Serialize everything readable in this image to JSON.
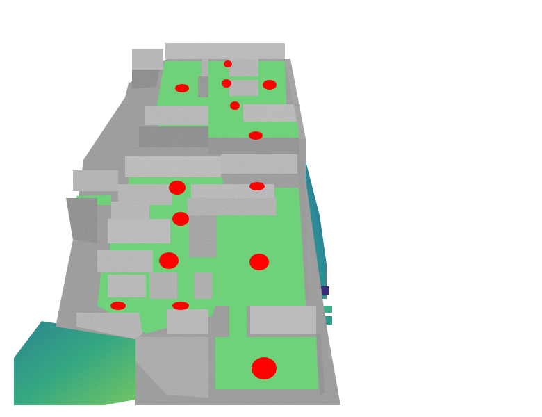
{
  "scene": {
    "kind": "3d-floorplan-occupancy-render",
    "colors": {
      "background": "#ffffff",
      "wall": "#b9b9b9",
      "wall_shadow": "#8f8f8f",
      "wall_light": "#d8d8d8",
      "ground": "#a9a9a9",
      "floor": "#6fd27a",
      "floor_dark": "#5cc46c",
      "marker": "#ff0000",
      "heat_teal": "#2a9d8f",
      "heat_blue": "#3b5ba5",
      "heat_green": "#4fc080",
      "heat_purple": "#3a2a7a"
    },
    "marker_count": 15,
    "legend": []
  }
}
